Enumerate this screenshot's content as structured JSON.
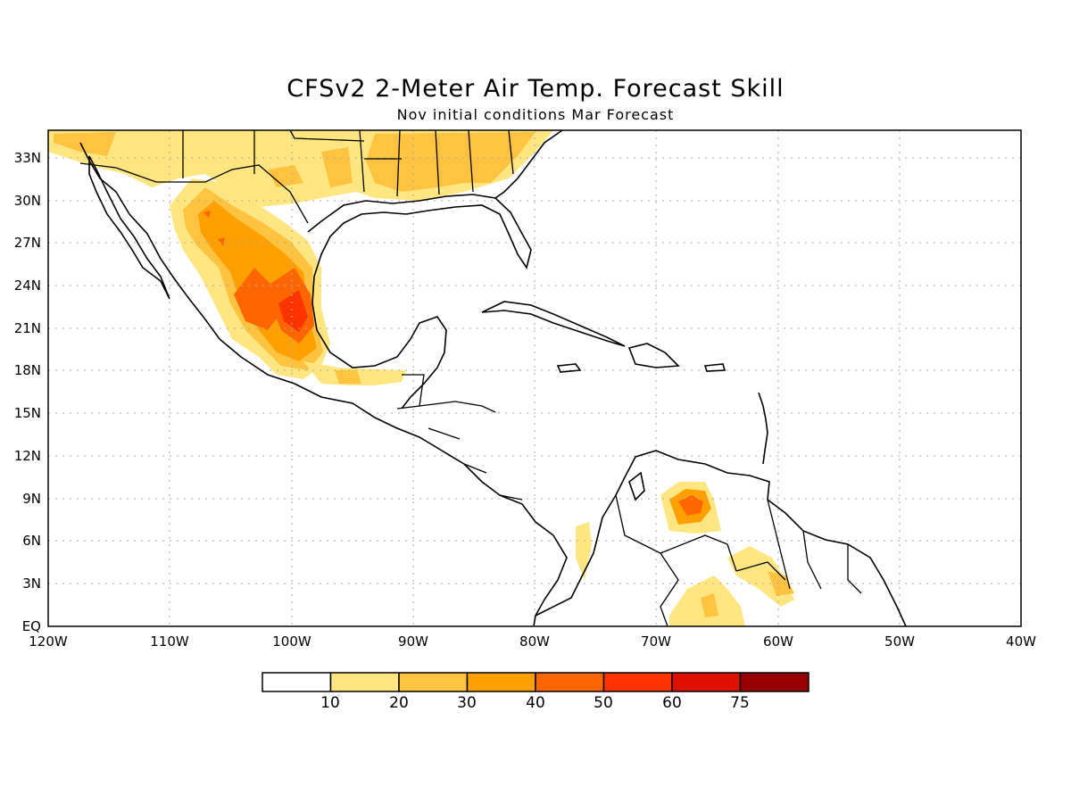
{
  "title": "CFSv2 2-Meter Air Temp. Forecast Skill",
  "subtitle": "Nov initial conditions  Mar Forecast",
  "map": {
    "lat_ticks": [
      "33N",
      "30N",
      "27N",
      "24N",
      "21N",
      "18N",
      "15N",
      "12N",
      "9N",
      "6N",
      "3N",
      "EQ"
    ],
    "lon_ticks": [
      "120W",
      "110W",
      "100W",
      "90W",
      "80W",
      "70W",
      "60W",
      "50W",
      "40W"
    ]
  },
  "colorbar": {
    "labels": [
      "10",
      "20",
      "30",
      "40",
      "50",
      "60",
      "75"
    ],
    "colors": [
      "#ffffff",
      "#ffe680",
      "#ffc33f",
      "#ffa000",
      "#ff6600",
      "#ff3300",
      "#dd1100",
      "#990000"
    ]
  }
}
